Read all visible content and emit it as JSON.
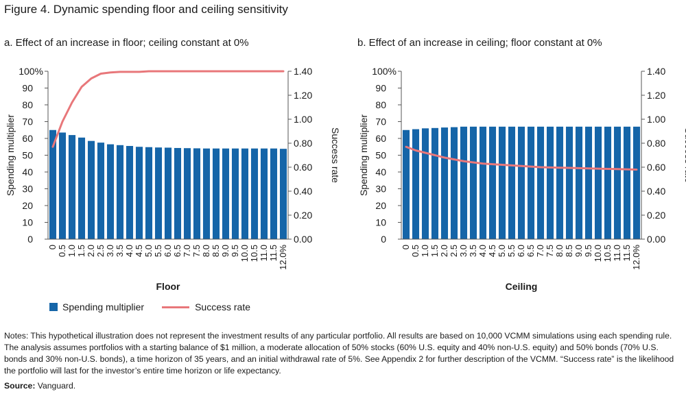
{
  "figure_title": "Figure 4. Dynamic spending floor and ceiling sensitivity",
  "legend": {
    "bar_label": "Spending multiplier",
    "line_label": "Success rate"
  },
  "notes": {
    "label": "Notes:",
    "text": "This hypothetical illustration does not represent the investment results of any particular portfolio. All results are based on 10,000 VCMM simulations using each spending rule. The analysis assumes portfolios with a starting balance of $1 million, a moderate allocation of 50% stocks (60% U.S. equity and 40% non-U.S. equity) and 50% bonds (70% U.S. bonds and 30% non-U.S. bonds), a time horizon of 35 years, and an initial withdrawal rate of 5%. See Appendix 2 for further description of the VCMM. “Success rate” is the likelihood the portfolio will last for the investor’s entire time horizon or life expectancy."
  },
  "source": {
    "label": "Source:",
    "text": "Vanguard."
  },
  "colors": {
    "bar": "#1565a8",
    "line": "#e8777a",
    "axis": "#555555"
  },
  "chart_data": [
    {
      "type": "bar",
      "title": "a. Effect of an increase in floor; ceiling constant at 0%",
      "xlabel": "Floor",
      "ylabel": "Spending multiplier",
      "y2label": "Success rate",
      "ylim": [
        0,
        100
      ],
      "y2lim": [
        0,
        1.4
      ],
      "yticks": [
        "0",
        "10",
        "20",
        "30",
        "40",
        "50",
        "60",
        "70",
        "80",
        "90",
        "100%"
      ],
      "y2ticks": [
        "0.00",
        "0.20",
        "0.40",
        "0.60",
        "0.80",
        "1.00",
        "1.20",
        "1.40"
      ],
      "categories": [
        "0",
        "0.5",
        "1.0",
        "1.5",
        "2.0",
        "2.5",
        "3.0",
        "3.5",
        "4.0",
        "4.5",
        "5.0",
        "5.5",
        "6.0",
        "6.5",
        "7.0",
        "7.5",
        "8.0",
        "8.5",
        "9.0",
        "9.5",
        "10.0",
        "10.5",
        "11.0",
        "11.5",
        "12.0%"
      ],
      "series": [
        {
          "name": "Spending multiplier",
          "type": "bar",
          "axis": "left",
          "values": [
            65,
            63.5,
            62,
            60.5,
            58.5,
            57.5,
            56.5,
            56,
            55.5,
            55,
            54.8,
            54.6,
            54.5,
            54.3,
            54.2,
            54.1,
            54,
            54,
            54,
            54,
            54,
            54,
            54,
            54,
            53.8
          ]
        },
        {
          "name": "Success rate",
          "type": "line",
          "axis": "right",
          "values": [
            0.77,
            0.98,
            1.14,
            1.27,
            1.34,
            1.38,
            1.39,
            1.395,
            1.395,
            1.395,
            1.4,
            1.4,
            1.4,
            1.4,
            1.4,
            1.4,
            1.4,
            1.4,
            1.4,
            1.4,
            1.4,
            1.4,
            1.4,
            1.4,
            1.4
          ]
        }
      ]
    },
    {
      "type": "bar",
      "title": "b. Effect of an increase in ceiling; floor constant at 0%",
      "xlabel": "Ceiling",
      "ylabel": "Spending multiplier",
      "y2label": "Success rate",
      "ylim": [
        0,
        100
      ],
      "y2lim": [
        0,
        1.4
      ],
      "yticks": [
        "0",
        "10",
        "20",
        "30",
        "40",
        "50",
        "60",
        "70",
        "80",
        "90",
        "100%"
      ],
      "y2ticks": [
        "0.00",
        "0.20",
        "0.40",
        "0.60",
        "0.80",
        "1.00",
        "1.20",
        "1.40"
      ],
      "categories": [
        "0",
        "0.5",
        "1.0",
        "1.5",
        "2.0",
        "2.5",
        "3.0",
        "3.5",
        "4.0",
        "4.5",
        "5.0",
        "5.5",
        "6.0",
        "6.5",
        "7.0",
        "7.5",
        "8.0",
        "8.5",
        "9.0",
        "9.5",
        "10.0",
        "10.5",
        "11.0",
        "11.5",
        "12.0%"
      ],
      "series": [
        {
          "name": "Spending multiplier",
          "type": "bar",
          "axis": "left",
          "values": [
            65,
            65.5,
            66,
            66.2,
            66.5,
            66.7,
            67,
            67,
            67,
            67,
            67,
            67,
            67,
            67,
            67,
            67,
            67,
            67,
            67,
            67,
            67,
            67,
            67,
            67,
            67
          ]
        },
        {
          "name": "Success rate",
          "type": "line",
          "axis": "right",
          "values": [
            0.77,
            0.74,
            0.72,
            0.7,
            0.68,
            0.665,
            0.65,
            0.64,
            0.63,
            0.625,
            0.62,
            0.615,
            0.61,
            0.605,
            0.6,
            0.598,
            0.596,
            0.594,
            0.592,
            0.59,
            0.588,
            0.586,
            0.584,
            0.582,
            0.58
          ]
        }
      ]
    }
  ]
}
